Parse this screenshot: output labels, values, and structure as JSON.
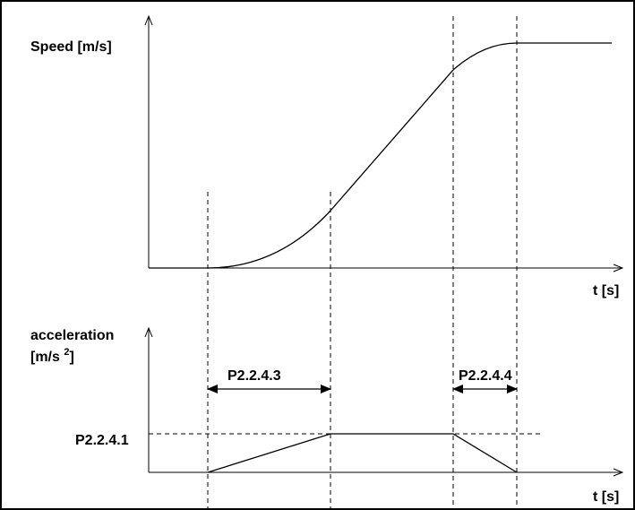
{
  "top_graph": {
    "y_label": "Speed [m/s]",
    "x_label": "t [s]"
  },
  "bottom_graph": {
    "y_label_line1": "acceleration",
    "y_label_line2": "[m/s ",
    "y_label_superscript": "2",
    "y_label_close": "]",
    "x_label": "t [s]",
    "level_label": "P2.2.4.1",
    "rise_interval_label": "P2.2.4.3",
    "fall_interval_label": "P2.2.4.4"
  },
  "colors": {
    "line": "#000000",
    "background": "#ffffff"
  }
}
